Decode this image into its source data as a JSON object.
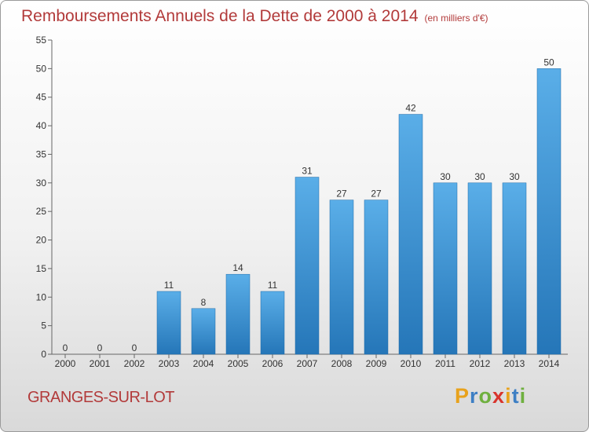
{
  "title": "Remboursements Annuels de la Dette de 2000 à 2014",
  "subtitle": "(en milliers d'€)",
  "commune": "GRANGES-SUR-LOT",
  "logo": {
    "letters": [
      "P",
      "r",
      "o",
      "x",
      "i",
      "t",
      "i"
    ],
    "colors": [
      "#e8a21c",
      "#3d7fc4",
      "#6fb03f",
      "#d8342c",
      "#e8a21c",
      "#3d7fc4",
      "#6fb03f"
    ]
  },
  "chart_data": {
    "type": "bar",
    "title": "Remboursements Annuels de la Dette de 2000 à 2014",
    "subtitle": "(en milliers d'€)",
    "categories": [
      "2000",
      "2001",
      "2002",
      "2003",
      "2004",
      "2005",
      "2006",
      "2007",
      "2008",
      "2009",
      "2010",
      "2011",
      "2012",
      "2013",
      "2014"
    ],
    "values": [
      0,
      0,
      0,
      11,
      8,
      14,
      11,
      31,
      27,
      27,
      42,
      30,
      30,
      30,
      50
    ],
    "data_labels": [
      "0",
      "0",
      "0",
      "11",
      "8",
      "14",
      "11",
      "31",
      "27",
      "27",
      "42",
      "30",
      "30",
      "30",
      "50"
    ],
    "yticks": [
      0,
      5,
      10,
      15,
      20,
      25,
      30,
      35,
      40,
      45,
      50,
      55
    ],
    "ylim": [
      0,
      55
    ],
    "grid": false,
    "colors": {
      "bar_top": "#5aaee8",
      "bar_bottom": "#2576b8",
      "axis": "#666666"
    }
  }
}
